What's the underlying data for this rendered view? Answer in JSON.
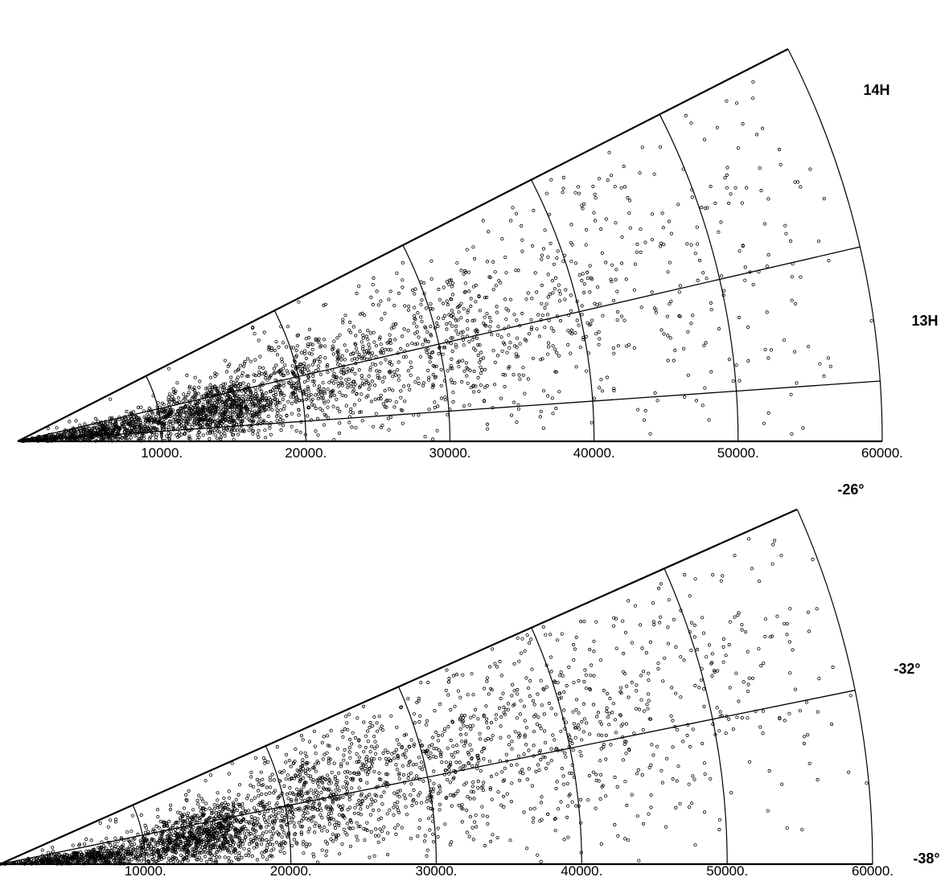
{
  "chart_data": [
    {
      "type": "scatter",
      "projection": "polar-wedge",
      "title": "",
      "radial_axis": {
        "range": [
          0,
          60000
        ],
        "ticks": [
          10000,
          20000,
          30000,
          40000,
          50000,
          60000
        ],
        "tick_labels": [
          "10000.",
          "20000.",
          "30000.",
          "40000.",
          "50000.",
          "60000."
        ]
      },
      "angle_axis": {
        "range_deg": [
          0,
          27
        ],
        "gridlines_deg": [
          4,
          13,
          27
        ],
        "labels": [
          {
            "text": "14H",
            "at_deg": 25
          },
          {
            "text": "13H",
            "at_deg": 13.5
          }
        ]
      },
      "arcs": [
        10000,
        20000,
        30000,
        40000,
        50000,
        60000
      ],
      "grid": true,
      "series": [
        {
          "marker": "open-circle",
          "approx_points": 3000,
          "density_clusters": [
            {
              "r": 6000,
              "theta_deg": 6,
              "weight": 0.22,
              "spread_r": 3000,
              "spread_deg": 4
            },
            {
              "r": 14000,
              "theta_deg": 9,
              "weight": 0.28,
              "spread_r": 2500,
              "spread_deg": 4
            },
            {
              "r": 21500,
              "theta_deg": 12,
              "weight": 0.16,
              "spread_r": 3000,
              "spread_deg": 5
            },
            {
              "r": 31000,
              "theta_deg": 13,
              "weight": 0.12,
              "spread_r": 3500,
              "spread_deg": 5
            },
            {
              "r": 40000,
              "theta_deg": 14,
              "weight": 0.06,
              "spread_r": 4000,
              "spread_deg": 6
            },
            {
              "r": 50000,
              "theta_deg": 15,
              "weight": 0.04,
              "spread_r": 6000,
              "spread_deg": 7
            }
          ]
        }
      ]
    },
    {
      "type": "scatter",
      "projection": "polar-wedge",
      "title": "",
      "radial_axis": {
        "range": [
          0,
          60000
        ],
        "ticks": [
          10000,
          20000,
          30000,
          40000,
          50000,
          60000
        ],
        "tick_labels": [
          "10000.",
          "20000.",
          "30000.",
          "40000.",
          "50000.",
          "60000."
        ]
      },
      "angle_axis": {
        "range_deg": [
          0,
          24
        ],
        "gridlines_deg": [
          11.5,
          24
        ],
        "labels": [
          {
            "text": "-26°",
            "at_deg": 27
          },
          {
            "text": "-32°",
            "at_deg": 13
          },
          {
            "text": "-38°",
            "at_deg": 0
          }
        ]
      },
      "arcs": [
        10000,
        20000,
        30000,
        40000,
        50000,
        60000
      ],
      "grid": true,
      "series": [
        {
          "marker": "open-circle",
          "approx_points": 3000,
          "density_clusters": [
            {
              "r": 6000,
              "theta_deg": 4,
              "weight": 0.2,
              "spread_r": 3000,
              "spread_deg": 3
            },
            {
              "r": 14500,
              "theta_deg": 8,
              "weight": 0.3,
              "spread_r": 2500,
              "spread_deg": 4
            },
            {
              "r": 22500,
              "theta_deg": 12,
              "weight": 0.17,
              "spread_r": 3000,
              "spread_deg": 5
            },
            {
              "r": 31500,
              "theta_deg": 13,
              "weight": 0.14,
              "spread_r": 4000,
              "spread_deg": 5
            },
            {
              "r": 41000,
              "theta_deg": 14,
              "weight": 0.1,
              "spread_r": 4500,
              "spread_deg": 6
            },
            {
              "r": 52000,
              "theta_deg": 15,
              "weight": 0.05,
              "spread_r": 5000,
              "spread_deg": 6
            }
          ]
        }
      ]
    }
  ]
}
